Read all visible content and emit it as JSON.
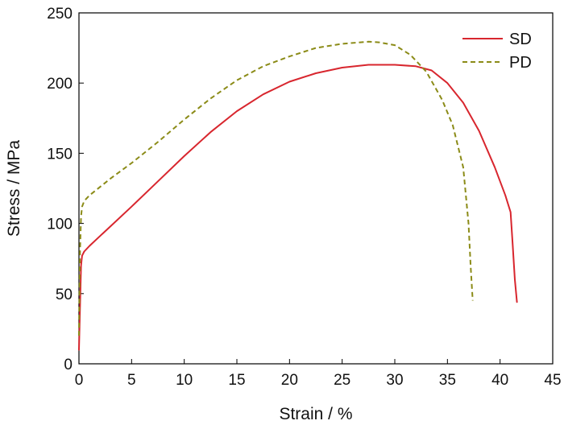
{
  "chart_data": {
    "type": "line",
    "title": "",
    "xlabel": "Strain / %",
    "ylabel": "Stress / MPa",
    "xlim": [
      0,
      45
    ],
    "ylim": [
      0,
      250
    ],
    "xticks": [
      0,
      5,
      10,
      15,
      20,
      25,
      30,
      35,
      40,
      45
    ],
    "yticks": [
      0,
      50,
      100,
      150,
      200,
      250
    ],
    "grid": false,
    "legend_position": "top-right",
    "series": [
      {
        "name": "SD",
        "color": "#d8262e",
        "style": "solid",
        "x": [
          0,
          0.1,
          0.2,
          0.3,
          0.5,
          1,
          2,
          3,
          5,
          7.5,
          10,
          12.5,
          15,
          17.5,
          20,
          22.5,
          25,
          27.5,
          30,
          32,
          33.5,
          35,
          36.5,
          38,
          39.5,
          40.5,
          41,
          41.2,
          41.4,
          41.6
        ],
        "y": [
          10,
          40,
          70,
          77,
          80,
          84,
          91,
          98,
          112,
          130,
          148,
          165,
          180,
          192,
          201,
          207,
          211,
          213,
          213,
          212,
          209,
          200,
          186,
          166,
          140,
          120,
          108,
          85,
          60,
          44
        ]
      },
      {
        "name": "PD",
        "color": "#8b8b17",
        "style": "dashed",
        "x": [
          0,
          0.1,
          0.2,
          0.3,
          0.5,
          1,
          2,
          3,
          5,
          7.5,
          10,
          12.5,
          15,
          17.5,
          20,
          22.5,
          25,
          27.5,
          28.5,
          30,
          31.5,
          33,
          34.5,
          35.5,
          36.5,
          37,
          37.2,
          37.4
        ],
        "y": [
          20,
          80,
          105,
          112,
          116,
          120,
          126,
          132,
          143,
          158,
          174,
          189,
          202,
          212,
          219,
          225,
          228,
          229.5,
          229,
          227,
          220,
          208,
          188,
          170,
          140,
          100,
          70,
          45
        ]
      }
    ]
  }
}
